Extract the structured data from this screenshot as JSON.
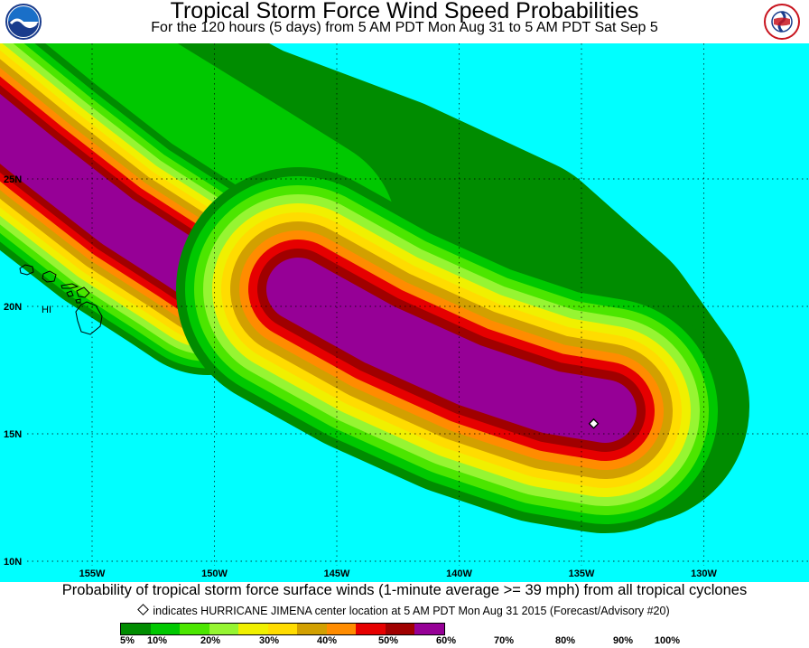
{
  "title": "Tropical Storm Force Wind Speed Probabilities",
  "subtitle": "For the 120 hours (5 days) from 5 AM PDT Mon Aug 31 to 5 AM PDT Sat Sep 5",
  "caption": "Probability of tropical storm force surface winds (1-minute average >= 39 mph) from all tropical cyclones",
  "center_note": "indicates HURRICANE JIMENA center location at 5 AM PDT Mon Aug 31 2015 (Forecast/Advisory #20)",
  "place_label": "HI",
  "logos": {
    "left": "noaa-logo",
    "right": "national-weather-service-logo"
  },
  "lon_labels": [
    "155W",
    "150W",
    "145W",
    "140W",
    "135W",
    "130W"
  ],
  "lat_labels": [
    "25N",
    "20N",
    "15N",
    "10N"
  ],
  "scale_labels": [
    "5%",
    "10%",
    "20%",
    "30%",
    "40%",
    "50%",
    "60%",
    "70%",
    "80%",
    "90%",
    "100%"
  ],
  "scale_colors": [
    "#008c00",
    "#00c800",
    "#4ce600",
    "#96f532",
    "#f0f000",
    "#ffdc00",
    "#d2a000",
    "#ff8c00",
    "#e60000",
    "#a00000",
    "#960096"
  ],
  "ocean_color": "#00ffff",
  "storm_marker": {
    "lat": 15.4,
    "lon": -134.5,
    "label": "HURRICANE JIMENA"
  }
}
